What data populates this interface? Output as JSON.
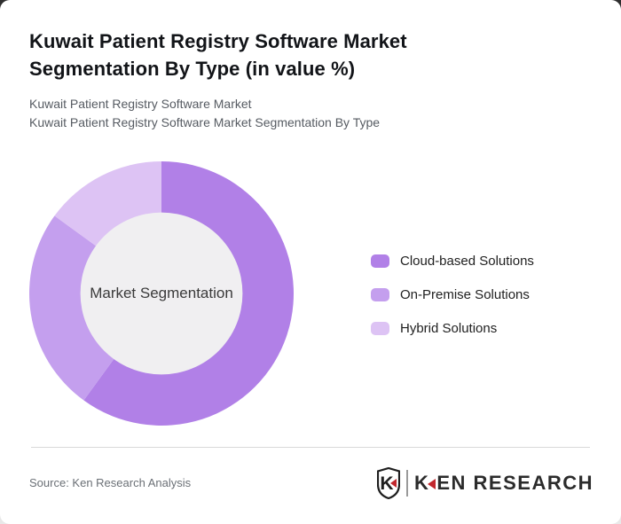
{
  "page": {
    "title": "Kuwait Patient Registry Software Market Segmentation By Type (in value %)",
    "subtitle_line1": "Kuwait Patient Registry Software Market",
    "subtitle_line2": "Kuwait Patient Registry Software Market Segmentation By Type",
    "source_text": "Source: Ken Research Analysis"
  },
  "logo": {
    "shield_letter": "K",
    "brand_first_letter": "K",
    "brand_rest": "EN RESEARCH",
    "accent_color": "#c1272d",
    "text_color": "#2b2b2b"
  },
  "chart_data": {
    "type": "pie",
    "donut": true,
    "title": "Kuwait Patient Registry Software Market Segmentation By Type (in value %)",
    "center_label": "Market Segmentation",
    "legend_position": "right",
    "unit": "%",
    "start_angle_deg": 0,
    "direction": "clockwise",
    "categories": [
      "Cloud-based Solutions",
      "On-Premise Solutions",
      "Hybrid Solutions"
    ],
    "values": [
      60,
      25,
      15
    ],
    "colors": [
      "#b180e7",
      "#c49fee",
      "#ddc3f4"
    ],
    "series": [
      {
        "name": "Cloud-based Solutions",
        "value": 60,
        "color": "#b180e7"
      },
      {
        "name": "On-Premise Solutions",
        "value": 25,
        "color": "#c49fee"
      },
      {
        "name": "Hybrid Solutions",
        "value": 15,
        "color": "#ddc3f4"
      }
    ],
    "inner_circle_color": "#f0eff1",
    "inner_radius_ratio": 0.61
  }
}
